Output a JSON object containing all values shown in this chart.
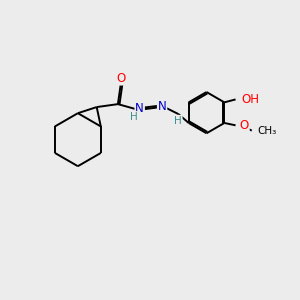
{
  "background_color": "#ececec",
  "bond_color": "#000000",
  "atom_colors": {
    "O": "#ff0000",
    "N": "#0000cd",
    "C": "#000000",
    "H": "#3a9090"
  },
  "bond_lw": 1.4,
  "fs_heavy": 8.5,
  "fs_small": 7.5
}
